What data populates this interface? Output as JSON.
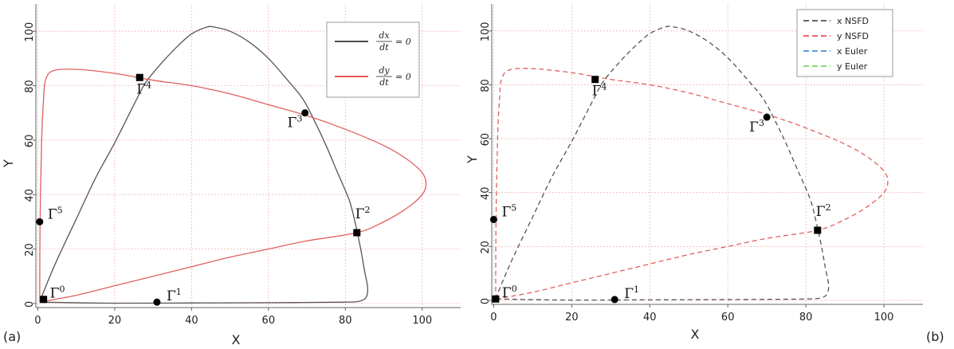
{
  "chart_data": [
    {
      "panel_label": "(a)",
      "type": "line",
      "xlabel": "X",
      "ylabel": "Y",
      "xlim": [
        -0.5,
        110
      ],
      "ylim": [
        -1.5,
        110
      ],
      "xticks": [
        "0",
        "20",
        "40",
        "60",
        "80",
        "100"
      ],
      "yticks": [
        "0",
        "20",
        "40",
        "60",
        "80",
        "100"
      ],
      "grid": true,
      "legend_position": "top-right",
      "series": [
        {
          "name_num": "dx",
          "name_den": "dt",
          "name_rhs": "= 0",
          "color": "#555555",
          "dash": "solid",
          "points": [
            [
              0.5,
              0.5
            ],
            [
              2,
              6
            ],
            [
              5,
              16
            ],
            [
              10,
              31
            ],
            [
              15,
              46
            ],
            [
              20,
              59
            ],
            [
              25,
              73
            ],
            [
              28,
              81
            ],
            [
              32,
              88
            ],
            [
              36,
              94
            ],
            [
              40,
              99
            ],
            [
              44,
              101.5
            ],
            [
              46,
              101.5
            ],
            [
              50,
              100
            ],
            [
              55,
              96
            ],
            [
              60,
              90
            ],
            [
              65,
              82
            ],
            [
              69,
              75
            ],
            [
              72,
              67
            ],
            [
              75,
              58
            ],
            [
              78,
              48
            ],
            [
              81,
              38
            ],
            [
              82.5,
              30
            ],
            [
              84,
              20
            ],
            [
              85,
              12
            ],
            [
              85.8,
              6
            ],
            [
              85.5,
              2.5
            ],
            [
              84,
              1
            ],
            [
              80,
              0.5
            ],
            [
              60,
              0.3
            ],
            [
              40,
              0.2
            ],
            [
              20,
              0.1
            ],
            [
              0.5,
              0.5
            ]
          ]
        },
        {
          "name_num": "dy",
          "name_den": "dt",
          "name_rhs": "= 0",
          "color": "#e06060",
          "dash": "solid",
          "points": [
            [
              0.5,
              0.5
            ],
            [
              10,
              3
            ],
            [
              20,
              6.5
            ],
            [
              30,
              10
            ],
            [
              40,
              13.5
            ],
            [
              50,
              17
            ],
            [
              60,
              20
            ],
            [
              70,
              23
            ],
            [
              83,
              26
            ],
            [
              90,
              30
            ],
            [
              96,
              35
            ],
            [
              100,
              40
            ],
            [
              101,
              44
            ],
            [
              100,
              48
            ],
            [
              96,
              53
            ],
            [
              90,
              58
            ],
            [
              80,
              64
            ],
            [
              70,
              69
            ],
            [
              60,
              73
            ],
            [
              50,
              77
            ],
            [
              40,
              80
            ],
            [
              30,
              82
            ],
            [
              20,
              84.5
            ],
            [
              10,
              86
            ],
            [
              4,
              85.5
            ],
            [
              2,
              82
            ],
            [
              1.5,
              75
            ],
            [
              1,
              60
            ],
            [
              0.6,
              30
            ],
            [
              0.5,
              0.5
            ]
          ]
        }
      ],
      "points": [
        {
          "label": "Γ",
          "sup": "0",
          "x": 1.5,
          "y": 1.5,
          "marker": "square"
        },
        {
          "label": "Γ",
          "sup": "1",
          "x": 31,
          "y": 0.5,
          "marker": "circle"
        },
        {
          "label": "Γ",
          "sup": "2",
          "x": 83,
          "y": 26,
          "marker": "square"
        },
        {
          "label": "Γ",
          "sup": "3",
          "x": 69.5,
          "y": 70,
          "marker": "circle"
        },
        {
          "label": "Γ",
          "sup": "4",
          "x": 26.5,
          "y": 83,
          "marker": "square"
        },
        {
          "label": "Γ",
          "sup": "5",
          "x": 0.5,
          "y": 30,
          "marker": "circle"
        }
      ]
    },
    {
      "panel_label": "(b)",
      "type": "line",
      "xlabel": "X",
      "ylabel": "Y",
      "xlim": [
        -0.5,
        110
      ],
      "ylim": [
        -1.5,
        110
      ],
      "xticks": [
        "0",
        "20",
        "40",
        "60",
        "80",
        "100"
      ],
      "yticks": [
        "0",
        "20",
        "40",
        "60",
        "80",
        "100"
      ],
      "grid": true,
      "legend_position": "top-right",
      "legend": [
        {
          "name": "x NSFD",
          "color": "#333333"
        },
        {
          "name": "y NSFD",
          "color": "#e83030"
        },
        {
          "name": "x Euler",
          "color": "#2a7fd4"
        },
        {
          "name": "y Euler",
          "color": "#66cc44"
        }
      ],
      "series": [
        {
          "color": "#555555",
          "dash": "dashed",
          "points": [
            [
              0.5,
              0.5
            ],
            [
              2,
              6
            ],
            [
              5,
              16
            ],
            [
              10,
              31
            ],
            [
              15,
              46
            ],
            [
              20,
              59
            ],
            [
              25,
              73
            ],
            [
              28,
              81
            ],
            [
              32,
              88
            ],
            [
              36,
              94
            ],
            [
              40,
              99
            ],
            [
              44,
              101.5
            ],
            [
              46,
              101.5
            ],
            [
              50,
              100
            ],
            [
              55,
              96
            ],
            [
              60,
              90
            ],
            [
              65,
              82
            ],
            [
              69,
              75
            ],
            [
              72,
              67
            ],
            [
              75,
              58
            ],
            [
              78,
              48
            ],
            [
              81,
              38
            ],
            [
              82.5,
              30
            ],
            [
              84,
              20
            ],
            [
              85,
              12
            ],
            [
              85.8,
              6
            ],
            [
              85.5,
              2.5
            ],
            [
              84,
              1
            ],
            [
              80,
              0.5
            ],
            [
              60,
              0.3
            ],
            [
              40,
              0.2
            ],
            [
              20,
              0.1
            ],
            [
              0.5,
              0.5
            ]
          ]
        },
        {
          "color": "#e06060",
          "dash": "dashed",
          "points": [
            [
              0.5,
              0.5
            ],
            [
              10,
              3
            ],
            [
              20,
              6.5
            ],
            [
              30,
              10
            ],
            [
              40,
              13.5
            ],
            [
              50,
              17
            ],
            [
              60,
              20
            ],
            [
              70,
              23
            ],
            [
              83,
              26
            ],
            [
              90,
              30
            ],
            [
              96,
              35
            ],
            [
              100,
              40
            ],
            [
              101,
              44
            ],
            [
              100,
              48
            ],
            [
              96,
              53
            ],
            [
              90,
              58
            ],
            [
              80,
              64
            ],
            [
              70,
              69
            ],
            [
              60,
              73
            ],
            [
              50,
              77
            ],
            [
              40,
              80
            ],
            [
              30,
              82
            ],
            [
              20,
              84.5
            ],
            [
              10,
              86
            ],
            [
              4,
              85.5
            ],
            [
              2,
              82
            ],
            [
              1.5,
              75
            ],
            [
              1,
              60
            ],
            [
              0.6,
              30
            ],
            [
              0.5,
              0.5
            ]
          ]
        }
      ],
      "points": [
        {
          "label": "Γ",
          "sup": "0",
          "x": 0.5,
          "y": 0.5,
          "marker": "square"
        },
        {
          "label": "Γ",
          "sup": "1",
          "x": 31,
          "y": 0.3,
          "marker": "circle"
        },
        {
          "label": "Γ",
          "sup": "2",
          "x": 83,
          "y": 26,
          "marker": "square"
        },
        {
          "label": "Γ",
          "sup": "3",
          "x": 70,
          "y": 68,
          "marker": "circle"
        },
        {
          "label": "Γ",
          "sup": "4",
          "x": 26,
          "y": 82,
          "marker": "square"
        },
        {
          "label": "Γ",
          "sup": "5",
          "x": 0,
          "y": 30,
          "marker": "circle"
        }
      ]
    }
  ]
}
